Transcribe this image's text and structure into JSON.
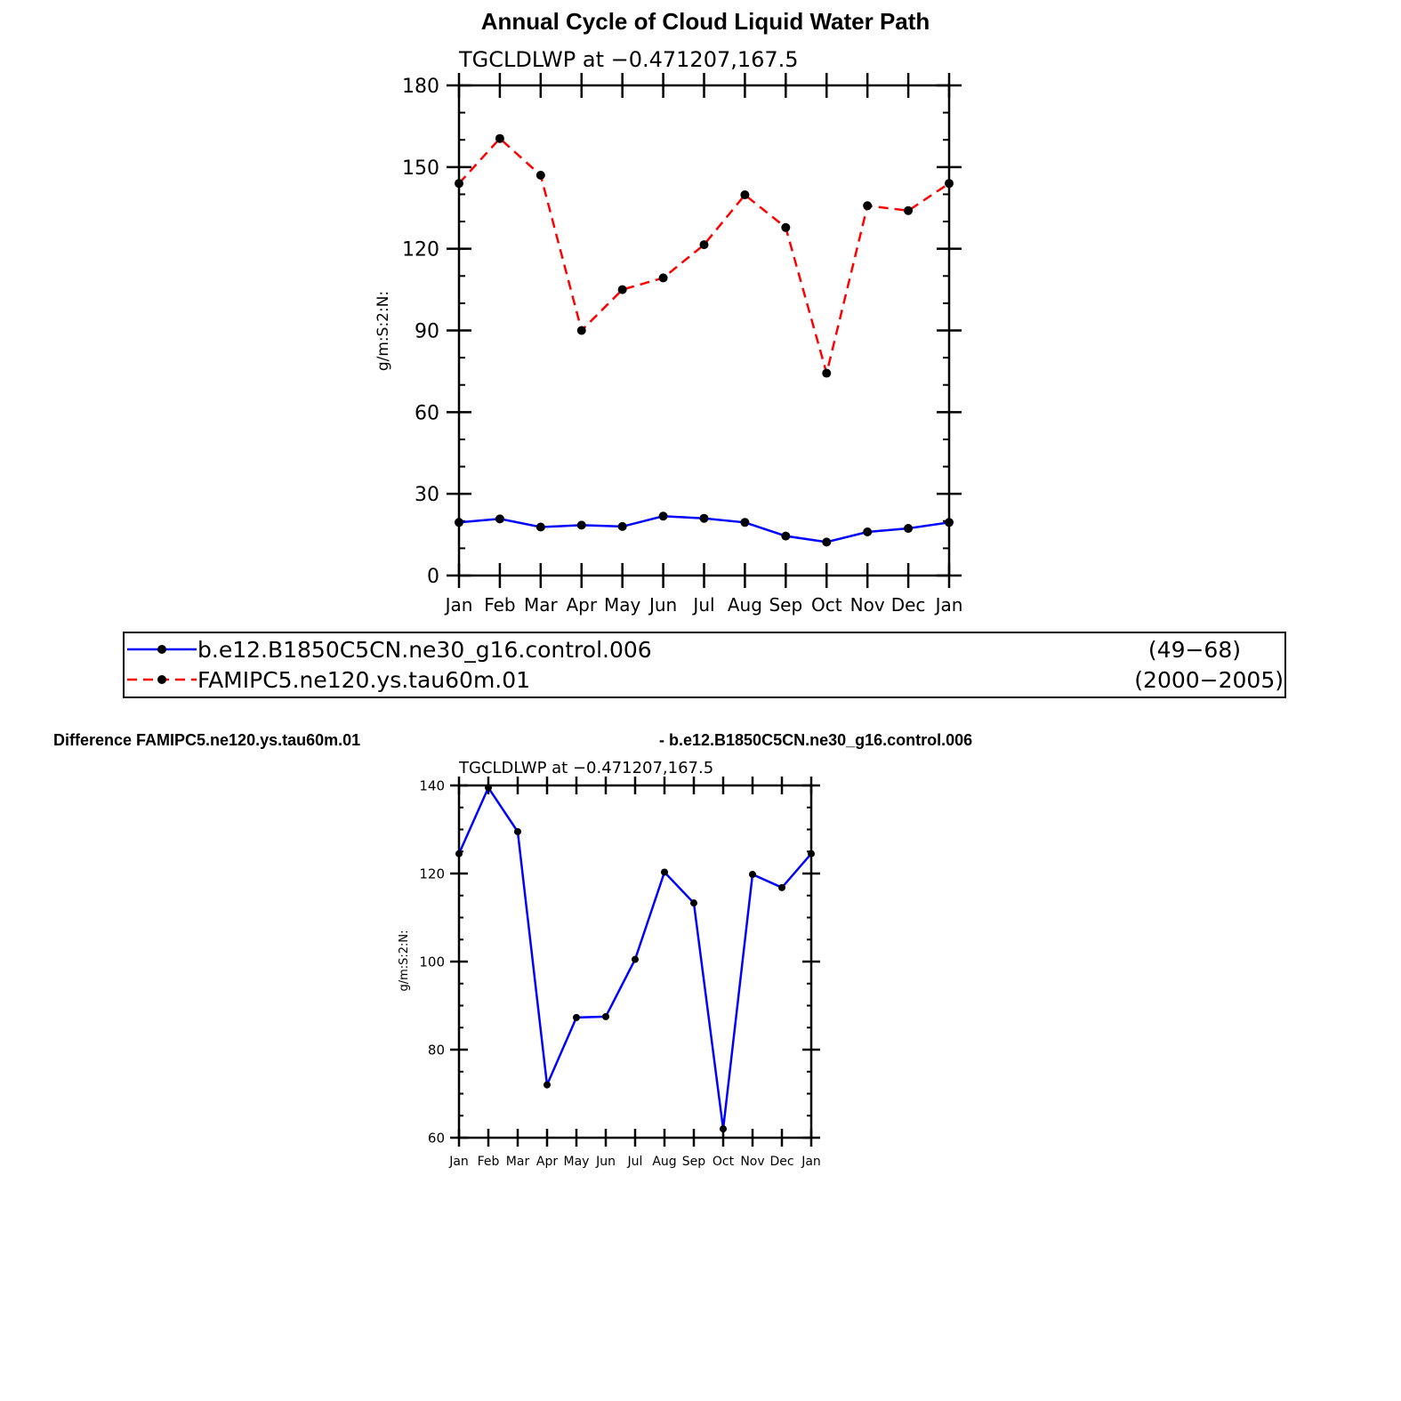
{
  "title": "Annual Cycle of Cloud Liquid Water Path",
  "colors": {
    "control": "#0000ff",
    "experiment": "#ff0000",
    "marker": "#000000"
  },
  "legend": {
    "entries": [
      {
        "name": "b.e12.B1850C5CN.ne30_g16.control.006",
        "years": "(49−68)",
        "color": "#0000ff",
        "style": "solid"
      },
      {
        "name": "FAMIPC5.ne120.ys.tau60m.01",
        "years": "(2000−2005)",
        "color": "#ff0000",
        "style": "dashed"
      }
    ]
  },
  "difference": {
    "left_title": "Difference FAMIPC5.ne120.ys.tau60m.01",
    "right_title": "- b.e12.B1850C5CN.ne30_g16.control.006"
  },
  "chart_data": [
    {
      "type": "line",
      "subtitle": "TGCLDLWP  at  −0.471207,167.5",
      "xlabel": "",
      "ylabel": "g/m:S:2:N:",
      "categories": [
        "Jan",
        "Feb",
        "Mar",
        "Apr",
        "May",
        "Jun",
        "Jul",
        "Aug",
        "Sep",
        "Oct",
        "Nov",
        "Dec",
        "Jan"
      ],
      "ylim": [
        0,
        180
      ],
      "yticks": [
        "0",
        "30",
        "60",
        "90",
        "120",
        "150",
        "180"
      ],
      "series": [
        {
          "name": "b.e12.B1850C5CN.ne30_g16.control.006",
          "color": "#0000ff",
          "style": "solid",
          "values": [
            19.5,
            20.8,
            17.8,
            18.5,
            18.0,
            21.8,
            21.0,
            19.5,
            14.5,
            12.3,
            16.0,
            17.3,
            19.5
          ]
        },
        {
          "name": "FAMIPC5.ne120.ys.tau60m.01",
          "color": "#ff0000",
          "style": "dashed",
          "values": [
            144.0,
            160.5,
            147.0,
            90.0,
            105.0,
            109.3,
            121.5,
            139.8,
            127.8,
            74.3,
            135.8,
            134.0,
            144.0
          ]
        }
      ]
    },
    {
      "type": "line",
      "subtitle": "TGCLDLWP  at  −0.471207,167.5",
      "xlabel": "",
      "ylabel": "g/m:S:2:N:",
      "categories": [
        "Jan",
        "Feb",
        "Mar",
        "Apr",
        "May",
        "Jun",
        "Jul",
        "Aug",
        "Sep",
        "Oct",
        "Nov",
        "Dec",
        "Jan"
      ],
      "ylim": [
        60,
        140
      ],
      "yticks": [
        "60",
        "80",
        "100",
        "120",
        "140"
      ],
      "series": [
        {
          "name": "Difference",
          "color": "#0000ff",
          "style": "solid",
          "values": [
            124.5,
            139.5,
            129.5,
            72.0,
            87.3,
            87.5,
            100.5,
            120.3,
            113.3,
            62.0,
            119.8,
            116.8,
            124.5
          ]
        }
      ]
    }
  ]
}
